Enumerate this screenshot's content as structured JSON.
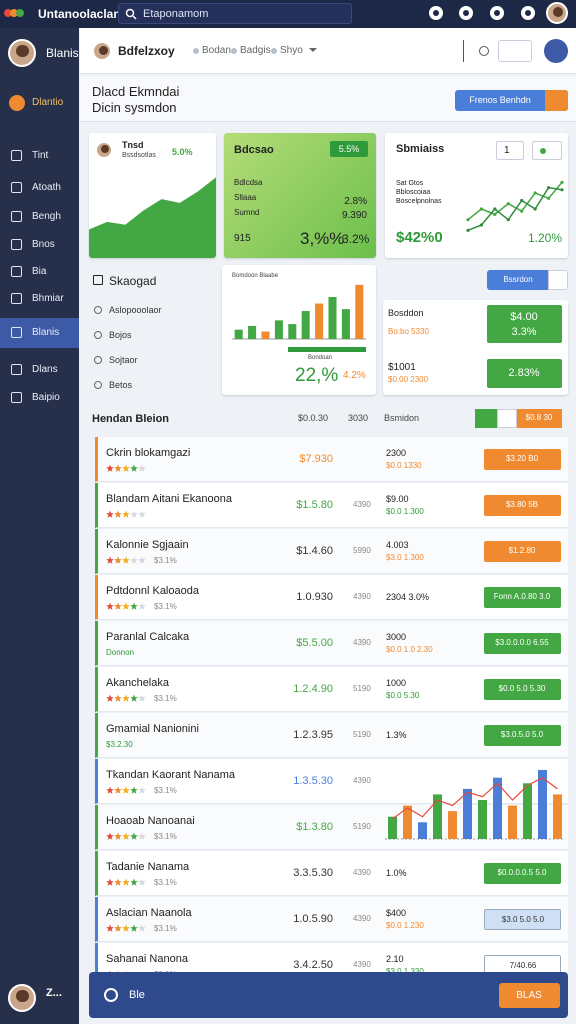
{
  "topbar": {
    "app_name": "Untanoolaclan",
    "search": "Etaponamom"
  },
  "sidebar": {
    "user": "Blanis",
    "items": [
      "Dlantio",
      "Tint",
      "Atoath",
      "Bengh",
      "Bnos",
      "Bia",
      "Bhmiar",
      "Blanis",
      "Dlans",
      "Baipio"
    ],
    "active": 7,
    "footer_user": "Z..."
  },
  "header": {
    "user": "Bdfelzxoy",
    "tabs": [
      "Bodan",
      "Badgis",
      "Shyo"
    ]
  },
  "page": {
    "title": "Dlacd Ekmndai",
    "subtitle": "Dicin sysmdon",
    "button": "Frenos Benhdn"
  },
  "cards": [
    {
      "title": "Tnsd",
      "subtitle": "Bssdsotlas",
      "badge": "5.0%",
      "values": [
        30,
        38,
        35,
        50,
        62,
        58,
        70,
        85
      ],
      "ylim": [
        0,
        100
      ],
      "color": "#43a843"
    },
    {
      "title": "Bdcsao",
      "badge": "5.5%",
      "labels": [
        "Bdlcdsa",
        "Sllaaa",
        "Sumnd"
      ],
      "figures": [
        "2.8%",
        "9.390"
      ],
      "footer": [
        "915",
        "3,%%",
        "3.2%"
      ]
    },
    {
      "title": "Sbmiaiss",
      "select": "1",
      "labels": [
        "Sat Gtos",
        "Bbloscoiaa",
        "Boscelpnolnas"
      ],
      "total": "$42%0",
      "change": "1.20%",
      "series": [
        {
          "color": "#43a843",
          "values": [
            20,
            30,
            25,
            35,
            28,
            45,
            40,
            55
          ]
        },
        {
          "color": "#2e8b3a",
          "values": [
            10,
            15,
            30,
            20,
            38,
            30,
            50,
            48
          ]
        }
      ],
      "ylim": [
        0,
        60
      ]
    }
  ],
  "panel": {
    "title": "Skaogad",
    "items": [
      "Aslopooolaor",
      "Bojos",
      "Sojtaor",
      "Betos"
    ]
  },
  "bar_card": {
    "caption": "Bomdoon Blaabe",
    "values": [
      10,
      14,
      8,
      20,
      16,
      30,
      38,
      45,
      32,
      58
    ],
    "colors": [
      "#43a843",
      "#43a843",
      "#f08a30",
      "#43a843",
      "#43a843",
      "#43a843",
      "#f08a30",
      "#43a843",
      "#43a843",
      "#f08a30"
    ],
    "ylim": [
      0,
      60
    ],
    "note": "Bondoan",
    "big": "22,%",
    "small": "4.2%"
  },
  "side_card": {
    "button": "Bssrdon",
    "row1": [
      "Bosddon",
      "Bo:bo 5330"
    ],
    "box1": [
      "$4.00",
      "3.3%"
    ],
    "row2": [
      "$1001",
      "$0.00 2300"
    ],
    "box2": "2.83%"
  },
  "table": {
    "header": [
      "Hendan Bleion",
      "$0.0.30",
      "3030",
      "Bsmidon"
    ],
    "header_button": "$0.8 30",
    "rows": [
      {
        "name": "Ckrin blokamgazi",
        "rating": 4,
        "price": "$7.930",
        "qty": "",
        "val1": "2300",
        "val2": "$0.0 1330",
        "button": "$3.20 B0",
        "accent": "#f08a30",
        "price_color": "#f08a30",
        "button_color": "#f08a30"
      },
      {
        "name": "Blandam Aitani Ekanoona",
        "rating": 3,
        "price": "$1.5.80",
        "qty": "4390",
        "val1": "$9.00",
        "val2": "$0.0 1.300",
        "button": "$3.80 5B",
        "accent": "#43a843",
        "price_color": "#43a843",
        "button_color": "#f08a30"
      },
      {
        "name": "Kalonnie Sgjaain",
        "rating": 3,
        "sub": "$3.1%",
        "price": "$1.4.60",
        "qty": "5990",
        "val1": "4.003",
        "val2": "$3.0 1.300",
        "button": "$1.2.80",
        "accent": "#43a843",
        "price_color": "#333333",
        "button_color": "#f08a30"
      },
      {
        "name": "Pdtdonnl Kaloaoda",
        "rating": 4,
        "sub": "$3.1%",
        "price": "1.0.930",
        "qty": "4390",
        "val1": "2304 3.0%",
        "button": "Fonn A.0.80 3.0",
        "accent": "#f08a30",
        "price_color": "#333333",
        "button_color": "#43a843"
      },
      {
        "name": "Paranlal Calcaka",
        "sub": "Donnon",
        "price": "$5.5.00",
        "qty": "4390",
        "val1": "3000",
        "val2": "$0.0 1.0 2.30",
        "button": "$3.0.0.0.0 6.55",
        "accent": "#43a843",
        "price_color": "#43a843",
        "button_color": "#43a843"
      },
      {
        "name": "Akanchelaka",
        "rating": 4,
        "sub": "$3.1%",
        "price": "1.2.4.90",
        "qty": "5190",
        "val1": "1000",
        "val2": "$0.0 5.30",
        "button": "$0.0 5.0 5.30",
        "accent": "#43a843",
        "price_color": "#43a843",
        "button_color": "#43a843"
      },
      {
        "name": "Gmamial Nanionini",
        "sub": "$3.2.30",
        "price": "1.2.3.95",
        "qty": "5190",
        "val1": "1.3%",
        "button": "$3.0.5.0 5.0",
        "accent": "#43a843",
        "price_color": "#333333",
        "button_color": "#43a843"
      },
      {
        "name": "Tkandan Kaorant Nanama",
        "rating": 4,
        "sub": "$3.1%",
        "price": "1.3.5.30",
        "qty": "4390",
        "accent": "#4a7ed8",
        "price_color": "#4a7ed8"
      },
      {
        "name": "Hoaoab Nanoanai",
        "rating": 4,
        "sub": "$3.1%",
        "price": "$1.3.80",
        "qty": "5190",
        "accent": "#43a843",
        "price_color": "#43a843"
      },
      {
        "name": "Tadanie Nanama",
        "rating": 4,
        "sub": "$3.1%",
        "price": "3.3.5.30",
        "qty": "4390",
        "val1": "1.0%",
        "button": "$0.0.0.0.5 5.0",
        "accent": "#43a843",
        "price_color": "#333333",
        "button_color": "#43a843"
      },
      {
        "name": "Aslacian Naanola",
        "rating": 4,
        "sub": "$3.1%",
        "price": "1.0.5.90",
        "qty": "4390",
        "val1": "$400",
        "val2": "$0.0 1.230",
        "button": "$3.0 5.0 5.0",
        "accent": "#4a7ed8",
        "price_color": "#333333",
        "button_color": "#cfe0f5"
      },
      {
        "name": "Sahanai Nanona",
        "rating": 3,
        "sub": "$3.1%",
        "price": "3.4.2.50",
        "qty": "4390",
        "val1": "2.10",
        "val2": "$3.0 1.330",
        "button": "7/40.66",
        "accent": "#4a7ed8",
        "price_color": "#333333",
        "button_color": "#ffffff"
      }
    ],
    "chart": {
      "values": [
        20,
        30,
        15,
        40,
        25,
        45,
        35,
        55,
        30,
        50,
        62,
        40
      ],
      "colors": [
        "#43a843",
        "#f08a30",
        "#4a7ed8",
        "#43a843",
        "#f08a30",
        "#4a7ed8",
        "#43a843",
        "#4a7ed8",
        "#f08a30",
        "#43a843",
        "#4a7ed8",
        "#f08a30"
      ],
      "line": [
        18,
        28,
        20,
        35,
        30,
        42,
        38,
        50,
        35,
        48,
        55,
        45
      ],
      "ylim": [
        0,
        70
      ]
    }
  },
  "footer": {
    "label": "Ble",
    "button": "BLAS"
  }
}
